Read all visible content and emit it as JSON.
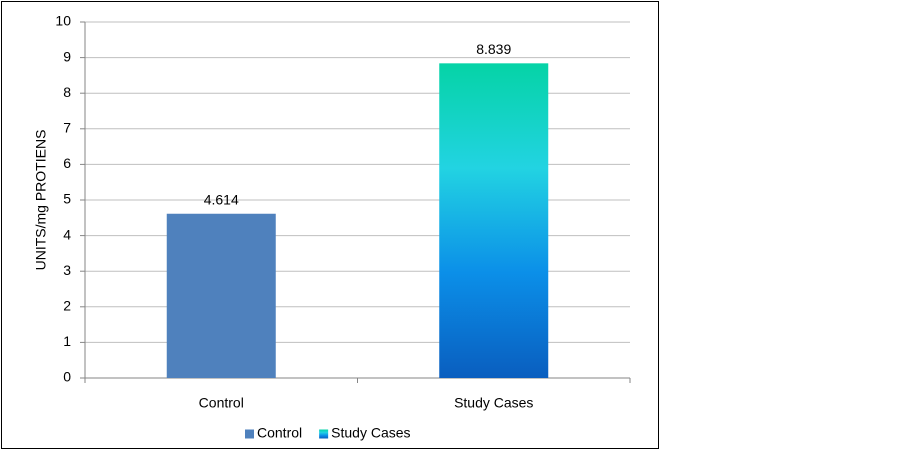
{
  "chart_data": {
    "type": "bar",
    "ylabel": "UNITS/mg PROTIENS",
    "categories": [
      "Control",
      "Study Cases"
    ],
    "values": [
      4.614,
      8.839
    ],
    "colors": [
      "#4f81bd",
      [
        "#05d3a6",
        "#22d3e2",
        "#0b8fe8",
        "#0a5ebf"
      ]
    ],
    "ylim": [
      0,
      10
    ],
    "yticks": [
      0,
      1,
      2,
      3,
      4,
      5,
      6,
      7,
      8,
      9,
      10
    ],
    "grid": true,
    "legend": "bottom"
  }
}
